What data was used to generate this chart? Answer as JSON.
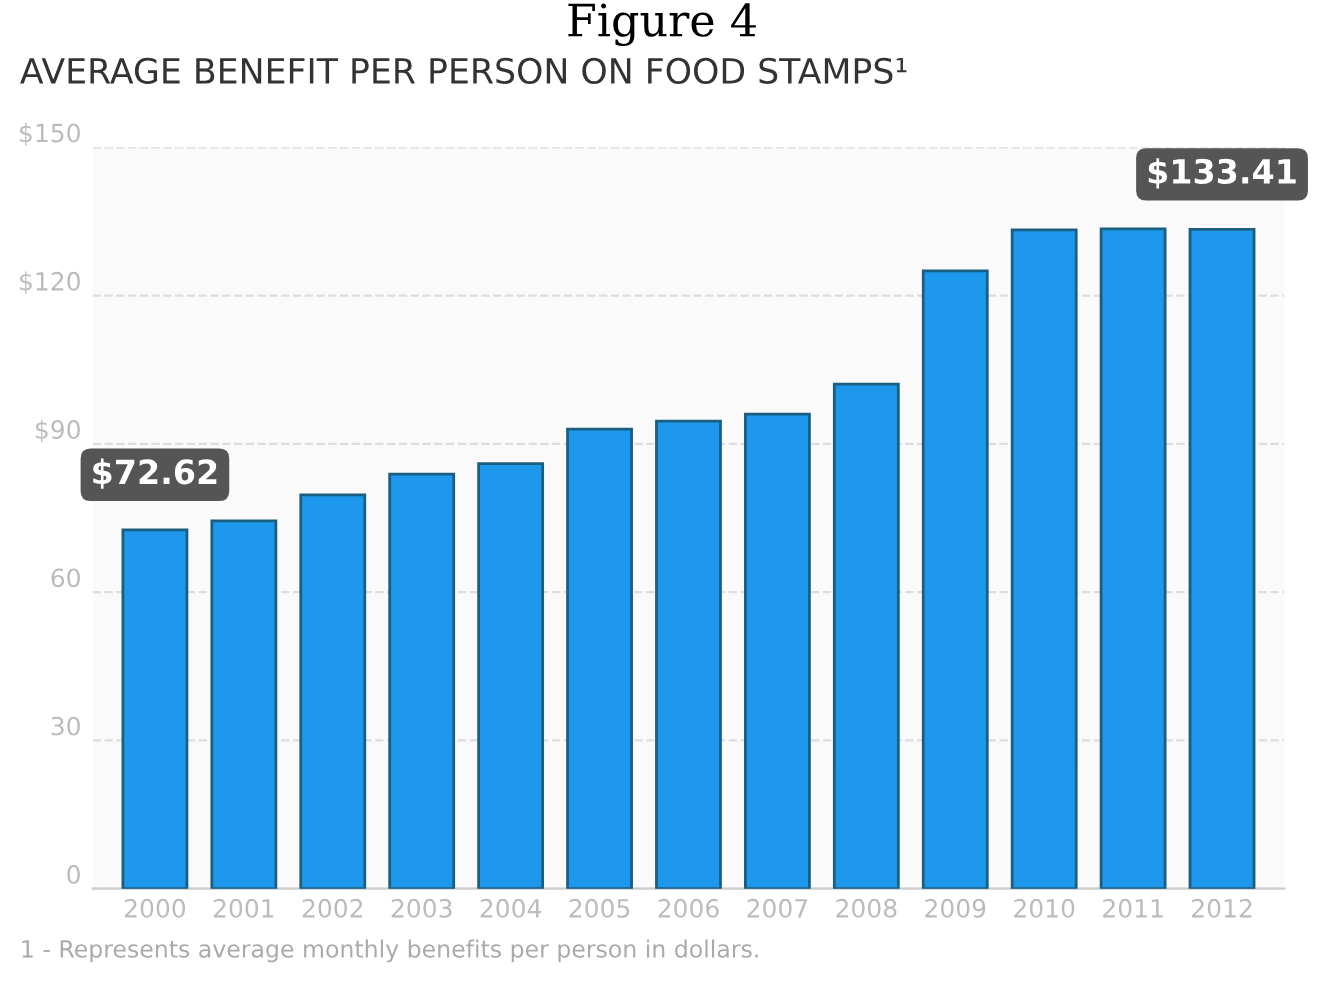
{
  "chart_data": {
    "type": "bar",
    "title": "AVERAGE BENEFIT PER PERSON ON FOOD STAMPS¹",
    "categories": [
      "2000",
      "2001",
      "2002",
      "2003",
      "2004",
      "2005",
      "2006",
      "2007",
      "2008",
      "2009",
      "2010",
      "2011",
      "2012"
    ],
    "values": [
      72.62,
      74.4,
      79.7,
      83.9,
      86.0,
      93.0,
      94.6,
      96.0,
      102.1,
      125.0,
      133.3,
      133.5,
      133.41
    ],
    "value_labels": [
      "$72.62",
      null,
      null,
      null,
      null,
      null,
      null,
      null,
      null,
      null,
      null,
      null,
      "$133.41"
    ],
    "color": "#1e98ec",
    "ylim": [
      0,
      150
    ],
    "yticks": [
      {
        "value": 0,
        "label": "0"
      },
      {
        "value": 30,
        "label": "30"
      },
      {
        "value": 60,
        "label": "60"
      },
      {
        "value": 90,
        "label": "$90"
      },
      {
        "value": 120,
        "label": "$120"
      },
      {
        "value": 150,
        "label": "$150"
      }
    ],
    "grid": "y",
    "annotations": [
      "Figure 4",
      "1 - Represents average monthly benefits per person in dollars."
    ]
  }
}
